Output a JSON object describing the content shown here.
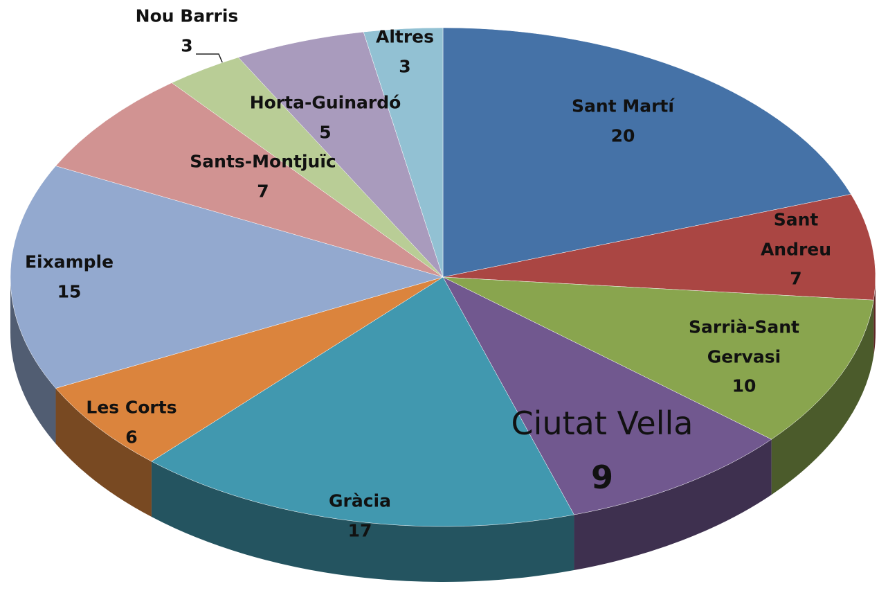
{
  "chart_data": {
    "type": "pie",
    "categories": [
      "Sant Martí",
      "Sant Andreu",
      "Sarrià-Sant Gervasi",
      "Ciutat Vella",
      "Gràcia",
      "Les Corts",
      "Eixample",
      "Sants-Montjuïc",
      "Nou Barris",
      "Horta-Guinardó",
      "Altres"
    ],
    "values": [
      20,
      7,
      10,
      9,
      17,
      6,
      15,
      7,
      3,
      5,
      3
    ],
    "colors": [
      "#4572a7",
      "#aa4643",
      "#89a54e",
      "#71588f",
      "#4198af",
      "#db843d",
      "#93a9cf",
      "#d19392",
      "#b9cd96",
      "#a99bbd",
      "#92c1d3"
    ]
  }
}
